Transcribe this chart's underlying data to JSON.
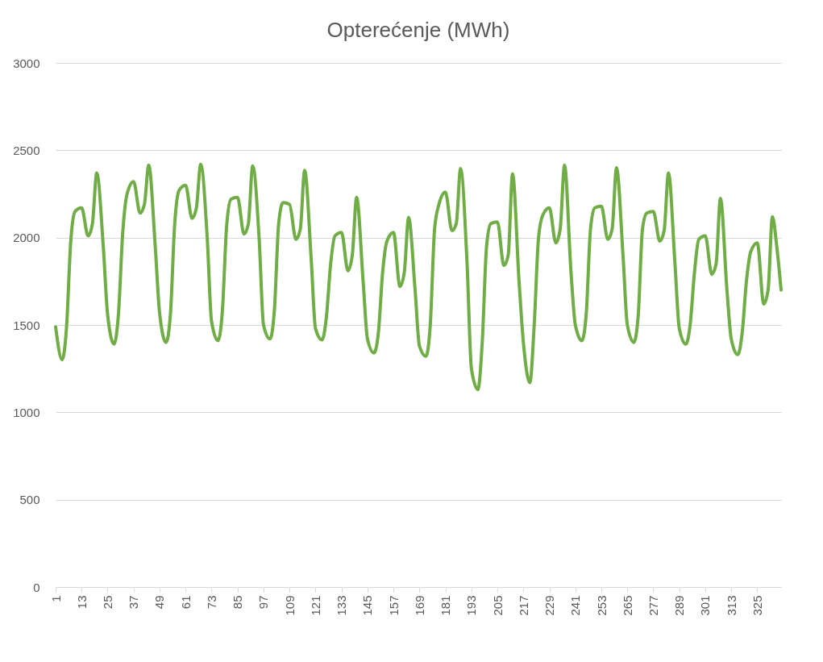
{
  "chart_data": {
    "type": "line",
    "title": "Opterećenje (MWh)",
    "x": [
      1,
      4,
      6,
      8,
      10,
      13,
      16,
      18,
      20,
      23,
      25,
      28,
      30,
      32,
      34,
      37,
      40,
      42,
      44,
      47,
      49,
      52,
      54,
      56,
      58,
      61,
      64,
      66,
      68,
      71,
      73,
      76,
      78,
      80,
      82,
      85,
      88,
      90,
      92,
      95,
      97,
      100,
      102,
      104,
      106,
      109,
      112,
      114,
      116,
      119,
      121,
      124,
      126,
      128,
      130,
      133,
      136,
      138,
      140,
      143,
      145,
      148,
      150,
      152,
      154,
      157,
      160,
      162,
      164,
      167,
      169,
      172,
      174,
      176,
      178,
      181,
      184,
      186,
      188,
      191,
      193,
      196,
      198,
      200,
      202,
      205,
      208,
      210,
      212,
      215,
      217,
      220,
      222,
      224,
      226,
      229,
      232,
      234,
      236,
      239,
      241,
      244,
      246,
      248,
      250,
      253,
      256,
      258,
      260,
      263,
      265,
      268,
      270,
      272,
      274,
      277,
      280,
      282,
      284,
      287,
      289,
      292,
      294,
      296,
      298,
      301,
      304,
      306,
      308,
      311,
      313,
      316,
      318,
      320,
      322,
      325,
      328,
      330,
      332,
      334,
      336
    ],
    "series": [
      {
        "color": "#70ad47",
        "values": [
          1490,
          1300,
          1480,
          1980,
          2150,
          2170,
          2010,
          2080,
          2370,
          1950,
          1560,
          1390,
          1560,
          2030,
          2250,
          2320,
          2140,
          2190,
          2415,
          1950,
          1570,
          1400,
          1560,
          2080,
          2270,
          2300,
          2110,
          2170,
          2420,
          2000,
          1520,
          1410,
          1580,
          2070,
          2220,
          2230,
          2020,
          2080,
          2410,
          1990,
          1500,
          1420,
          1580,
          2080,
          2200,
          2190,
          1990,
          2050,
          2385,
          1880,
          1480,
          1415,
          1540,
          1850,
          2010,
          2030,
          1810,
          1900,
          2230,
          1750,
          1420,
          1340,
          1450,
          1800,
          1980,
          2030,
          1720,
          1800,
          2115,
          1700,
          1380,
          1320,
          1500,
          2050,
          2190,
          2260,
          2040,
          2080,
          2395,
          1850,
          1250,
          1130,
          1400,
          1950,
          2080,
          2090,
          1840,
          1900,
          2365,
          1750,
          1400,
          1170,
          1500,
          2000,
          2130,
          2170,
          1970,
          2050,
          2415,
          1800,
          1500,
          1410,
          1560,
          2050,
          2170,
          2180,
          1990,
          2050,
          2400,
          1900,
          1500,
          1400,
          1550,
          2050,
          2140,
          2150,
          1980,
          2040,
          2370,
          1850,
          1480,
          1390,
          1500,
          1800,
          1990,
          2010,
          1790,
          1850,
          2225,
          1700,
          1420,
          1330,
          1450,
          1750,
          1920,
          1970,
          1620,
          1700,
          2120,
          1950,
          1700
        ]
      }
    ],
    "xlim": [
      1,
      336
    ],
    "xticks": [
      1,
      13,
      25,
      37,
      49,
      61,
      73,
      85,
      97,
      109,
      121,
      133,
      145,
      157,
      169,
      181,
      193,
      205,
      217,
      229,
      241,
      253,
      265,
      277,
      289,
      301,
      313,
      325
    ],
    "ylim": [
      0,
      3000
    ],
    "yticks": [
      0,
      500,
      1000,
      1500,
      2000,
      2500,
      3000
    ],
    "grid": "y",
    "legend": false,
    "marker": "none",
    "line_style": "solid"
  }
}
